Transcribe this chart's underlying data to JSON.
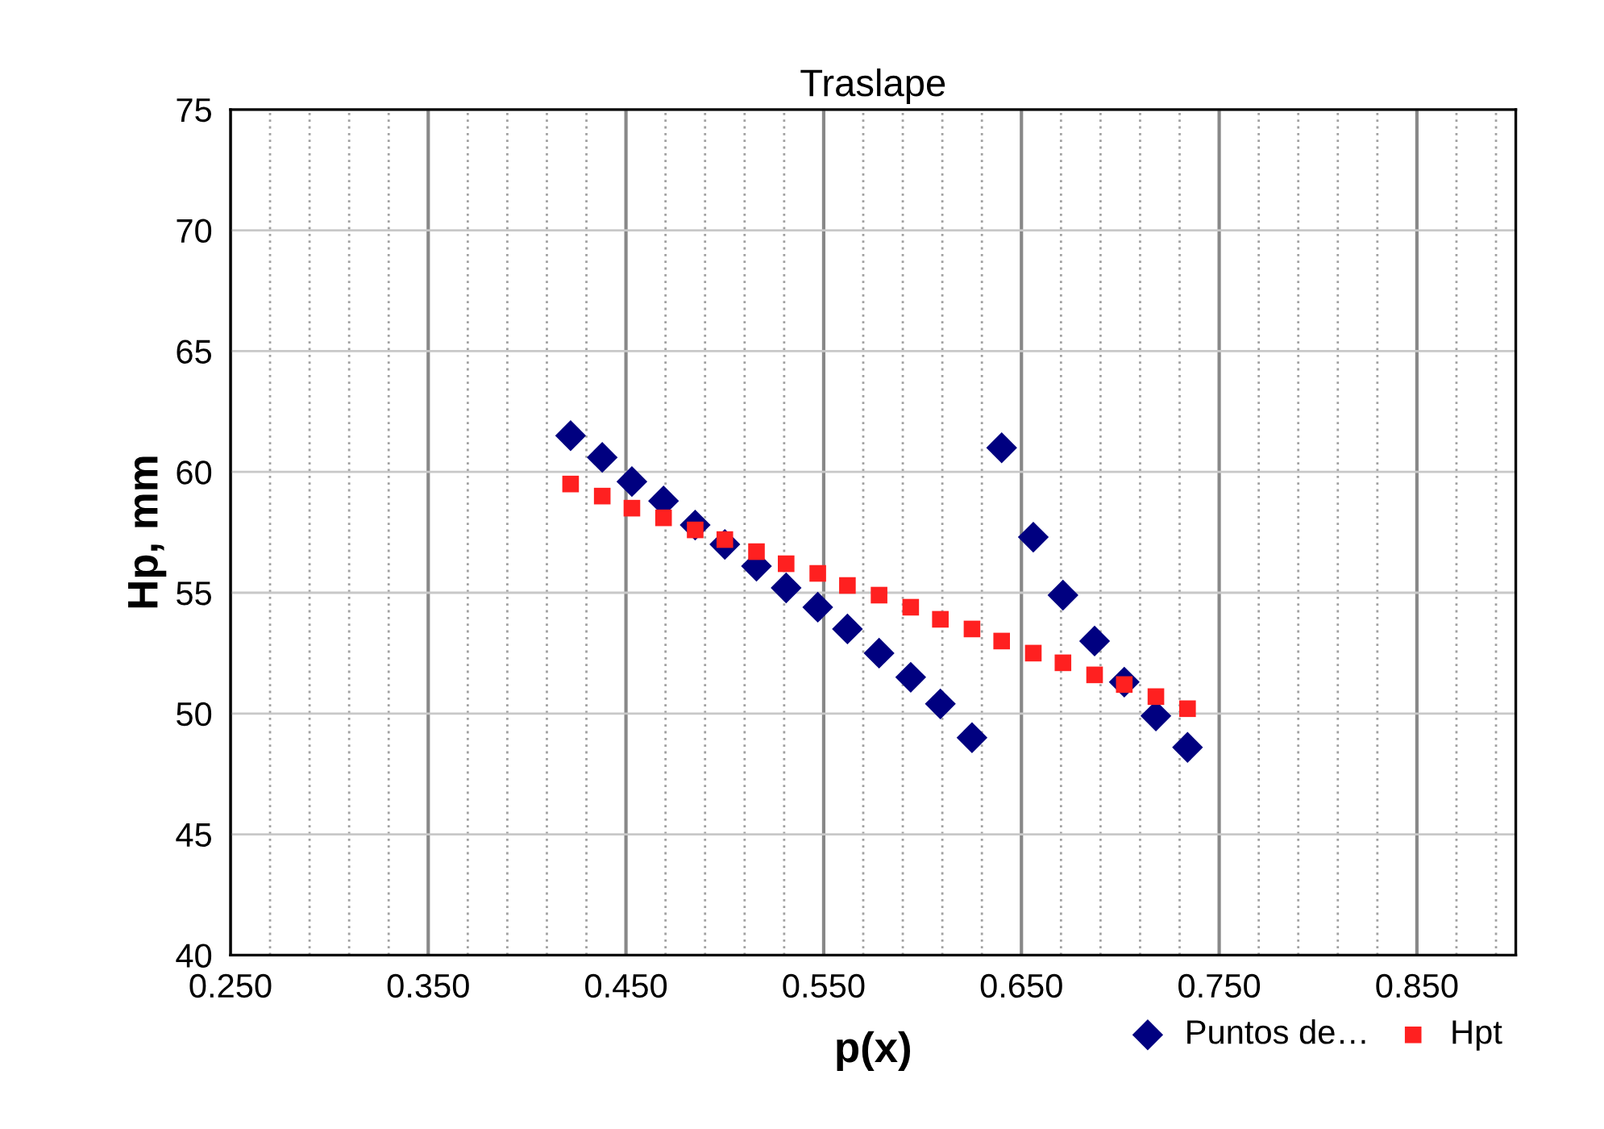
{
  "chart_data": {
    "type": "scatter",
    "title": "Traslape",
    "xlabel": "p(x)",
    "ylabel": "Hp, mm",
    "xlim": [
      0.25,
      0.9
    ],
    "xticks": [
      {
        "value": 0.25,
        "label": "0.250"
      },
      {
        "value": 0.35,
        "label": "0.350"
      },
      {
        "value": 0.45,
        "label": "0.450"
      },
      {
        "value": 0.55,
        "label": "0.550"
      },
      {
        "value": 0.65,
        "label": "0.650"
      },
      {
        "value": 0.75,
        "label": "0.750"
      },
      {
        "value": 0.85,
        "label": "0.850"
      }
    ],
    "ylim": [
      40,
      75
    ],
    "yticks": [
      40,
      45,
      50,
      55,
      60,
      65,
      70,
      75
    ],
    "grid": true,
    "legend": "bottom right",
    "x": [
      0.422,
      0.438,
      0.453,
      0.469,
      0.485,
      0.5,
      0.516,
      0.531,
      0.547,
      0.562,
      0.578,
      0.594,
      0.609,
      0.625,
      0.64,
      0.656,
      0.671,
      0.687,
      0.702,
      0.718,
      0.734
    ],
    "series": [
      {
        "name": "Puntos de…",
        "color": "#000080",
        "marker": "diamond",
        "values": [
          61.5,
          60.6,
          59.6,
          58.8,
          57.8,
          57.0,
          56.1,
          55.2,
          54.4,
          53.5,
          52.5,
          51.5,
          50.4,
          49.0,
          61.0,
          57.3,
          54.9,
          53.0,
          51.3,
          49.9,
          48.6
        ]
      },
      {
        "name": "Hpt",
        "color": "#ff2020",
        "marker": "square",
        "values": [
          59.5,
          59.0,
          58.5,
          58.1,
          57.6,
          57.2,
          56.7,
          56.2,
          55.8,
          55.3,
          54.9,
          54.4,
          53.9,
          53.5,
          53.0,
          52.5,
          52.1,
          51.6,
          51.2,
          50.7,
          50.2
        ]
      }
    ]
  }
}
